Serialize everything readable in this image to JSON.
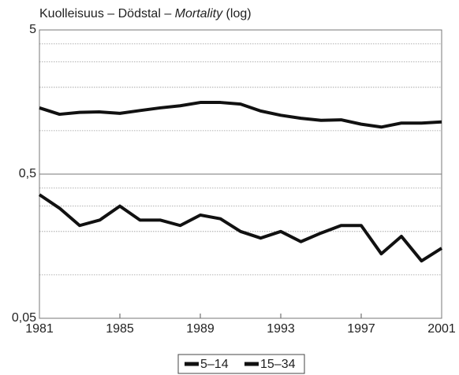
{
  "chart_data": {
    "type": "line",
    "title": [
      "Kuolleisuus – Dödstal – ",
      "Mortality",
      " (log)"
    ],
    "x": [
      1981,
      1982,
      1983,
      1984,
      1985,
      1986,
      1987,
      1988,
      1989,
      1990,
      1991,
      1992,
      1993,
      1994,
      1995,
      1996,
      1997,
      1998,
      1999,
      2000,
      2001
    ],
    "series": [
      {
        "name": "5–14",
        "color": "#111111",
        "values": [
          0.36,
          0.29,
          0.22,
          0.24,
          0.3,
          0.24,
          0.24,
          0.22,
          0.26,
          0.245,
          0.2,
          0.18,
          0.2,
          0.17,
          0.195,
          0.22,
          0.22,
          0.14,
          0.185,
          0.125,
          0.153
        ]
      },
      {
        "name": "15–34",
        "color": "#111111",
        "values": [
          1.44,
          1.3,
          1.34,
          1.35,
          1.32,
          1.38,
          1.44,
          1.49,
          1.57,
          1.57,
          1.53,
          1.37,
          1.28,
          1.22,
          1.18,
          1.19,
          1.11,
          1.06,
          1.13,
          1.13,
          1.15
        ]
      }
    ],
    "xlim": [
      1981,
      2001
    ],
    "xticks": [
      1981,
      1985,
      1989,
      1993,
      1997,
      2001
    ],
    "ylim": [
      0.05,
      5
    ],
    "log_y": true,
    "yticks": [
      {
        "value": 0.05,
        "label": "0,05"
      },
      {
        "value": 0.5,
        "label": "0,5"
      },
      5
    ],
    "y_minor_ticks": [
      0.1,
      0.2,
      0.3,
      0.4,
      1,
      2,
      3,
      4
    ],
    "grid": true,
    "legend": "bottom"
  }
}
